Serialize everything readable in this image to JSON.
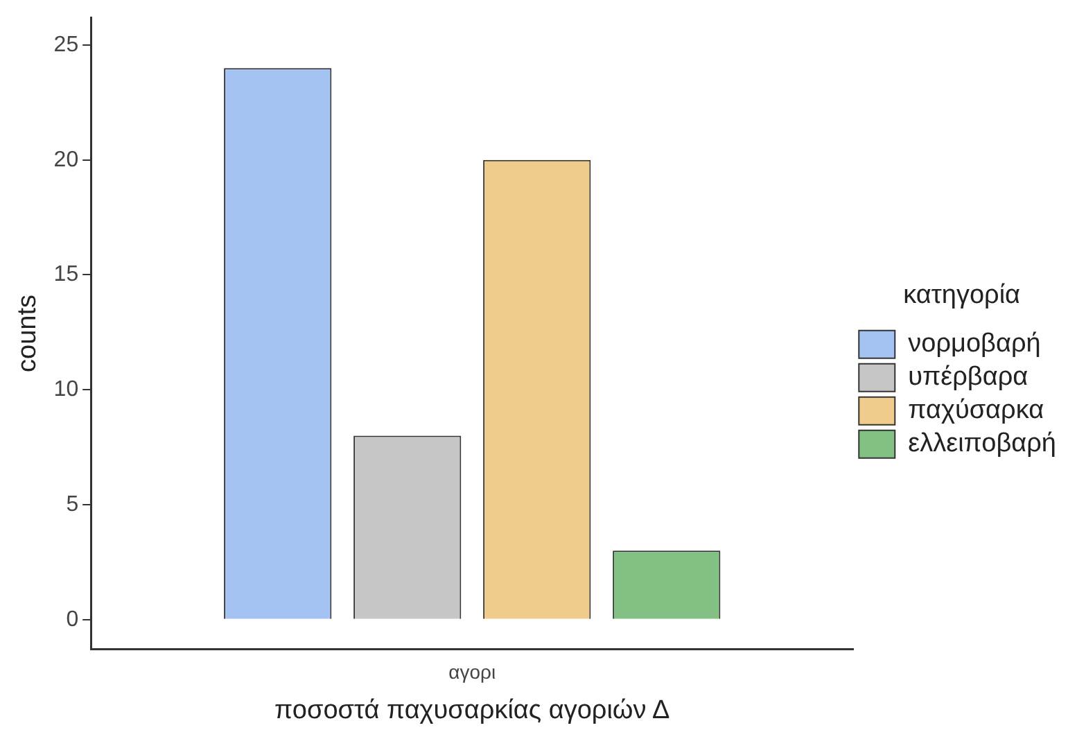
{
  "chart_data": {
    "type": "bar",
    "xlabel": "ποσοστά παχυσαρκίας αγοριών Δ",
    "ylabel": "counts",
    "legend_title": "κατηγορία",
    "categories": [
      "αγορι"
    ],
    "series": [
      {
        "name": "νορμοβαρή",
        "color": "#a4c3f2",
        "values": [
          24
        ]
      },
      {
        "name": "υπέρβαρα",
        "color": "#c6c6c6",
        "values": [
          8
        ]
      },
      {
        "name": "παχύσαρκα",
        "color": "#f0cc8c",
        "values": [
          20
        ]
      },
      {
        "name": "ελλειποβαρή",
        "color": "#82c084",
        "values": [
          3
        ]
      }
    ],
    "ylim": [
      -1.3,
      26.2
    ],
    "yticks": [
      0,
      5,
      10,
      15,
      20,
      25
    ],
    "grid": false,
    "legend": "right"
  }
}
